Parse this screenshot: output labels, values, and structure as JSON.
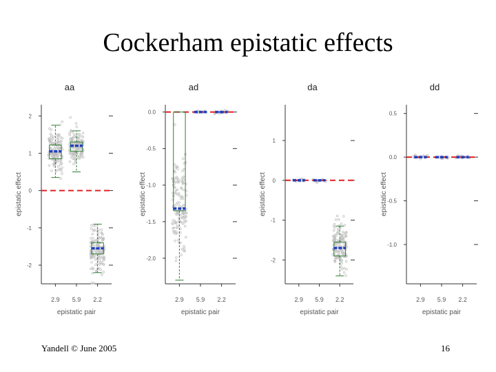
{
  "slide": {
    "title": "Cockerham epistatic effects",
    "footer_left": "Yandell © June 2005",
    "page_number": "16"
  },
  "colors": {
    "points": "#bdbdbd",
    "box": "#2e7d32",
    "median": "#1f3fbf",
    "zero_line": "#e02020",
    "axis": "#333333"
  },
  "chart_data": [
    {
      "type": "box",
      "title": "aa",
      "xlabel": "epistatic pair",
      "ylabel": "epistatic effect",
      "categories": [
        "2.9",
        "5.9",
        "2.2"
      ],
      "ylim": [
        -2.5,
        2.3
      ],
      "yticks": [
        -2,
        -1,
        0,
        1,
        2
      ],
      "ytick_labels": [
        "-2",
        "-1",
        "0",
        "1",
        "2"
      ],
      "zero_line": 0,
      "boxes": [
        {
          "min": 0.35,
          "q1": 0.85,
          "median": 1.05,
          "q3": 1.22,
          "max": 1.75,
          "spread": 0.3
        },
        {
          "min": 0.5,
          "q1": 1.05,
          "median": 1.2,
          "q3": 1.3,
          "max": 1.6,
          "spread": 0.2
        },
        {
          "min": -2.2,
          "q1": -1.7,
          "median": -1.55,
          "q3": -1.4,
          "max": -0.9,
          "spread": 0.3
        }
      ]
    },
    {
      "type": "box",
      "title": "ad",
      "xlabel": "epistatic pair",
      "ylabel": "epistatic effect",
      "categories": [
        "2.9",
        "5.9",
        "2.2"
      ],
      "ylim": [
        -2.35,
        0.1
      ],
      "yticks": [
        0,
        -0.5,
        -1,
        -1.5,
        -2
      ],
      "ytick_labels": [
        "0.0",
        "-0.5",
        "-1.0",
        "-1.5",
        "-2.0"
      ],
      "zero_line": 0,
      "boxes": [
        {
          "min": -2.3,
          "q1": -1.35,
          "median": -1.32,
          "q3": 0.0,
          "max": 0.0,
          "spread": 0.35
        },
        {
          "min": 0.0,
          "q1": 0.0,
          "median": 0.0,
          "q3": 0.0,
          "max": 0.0,
          "spread": 0.01
        },
        {
          "min": 0.0,
          "q1": 0.0,
          "median": 0.0,
          "q3": 0.0,
          "max": 0.0,
          "spread": 0.01
        }
      ]
    },
    {
      "type": "box",
      "title": "da",
      "xlabel": "epistatic pair",
      "ylabel": "epistatic effect",
      "categories": [
        "2.9",
        "5.9",
        "2.2"
      ],
      "ylim": [
        -2.6,
        1.9
      ],
      "yticks": [
        1,
        0,
        -1,
        -2
      ],
      "ytick_labels": [
        "1",
        "0",
        "-1",
        "-2"
      ],
      "zero_line": 0,
      "boxes": [
        {
          "min": 0.0,
          "q1": 0.0,
          "median": 0.0,
          "q3": 0.0,
          "max": 0.0,
          "spread": 0.02
        },
        {
          "min": 0.0,
          "q1": 0.0,
          "median": 0.0,
          "q3": 0.0,
          "max": 0.0,
          "spread": 0.02
        },
        {
          "min": -2.4,
          "q1": -1.9,
          "median": -1.7,
          "q3": -1.55,
          "max": -1.15,
          "spread": 0.3
        }
      ]
    },
    {
      "type": "box",
      "title": "dd",
      "xlabel": "epistatic pair",
      "ylabel": "epistatic effect",
      "categories": [
        "2.9",
        "5.9",
        "2.2"
      ],
      "ylim": [
        -1.45,
        0.6
      ],
      "yticks": [
        0.5,
        0,
        -0.5,
        -1
      ],
      "ytick_labels": [
        "0.5",
        "0.0",
        "-0.5",
        "-1.0"
      ],
      "zero_line": 0,
      "boxes": [
        {
          "min": 0.0,
          "q1": 0.0,
          "median": 0.0,
          "q3": 0.0,
          "max": 0.0,
          "spread": 0.01
        },
        {
          "min": 0.0,
          "q1": 0.0,
          "median": 0.0,
          "q3": 0.0,
          "max": 0.0,
          "spread": 0.01
        },
        {
          "min": 0.0,
          "q1": 0.0,
          "median": 0.0,
          "q3": 0.0,
          "max": 0.0,
          "spread": 0.01
        }
      ]
    }
  ]
}
